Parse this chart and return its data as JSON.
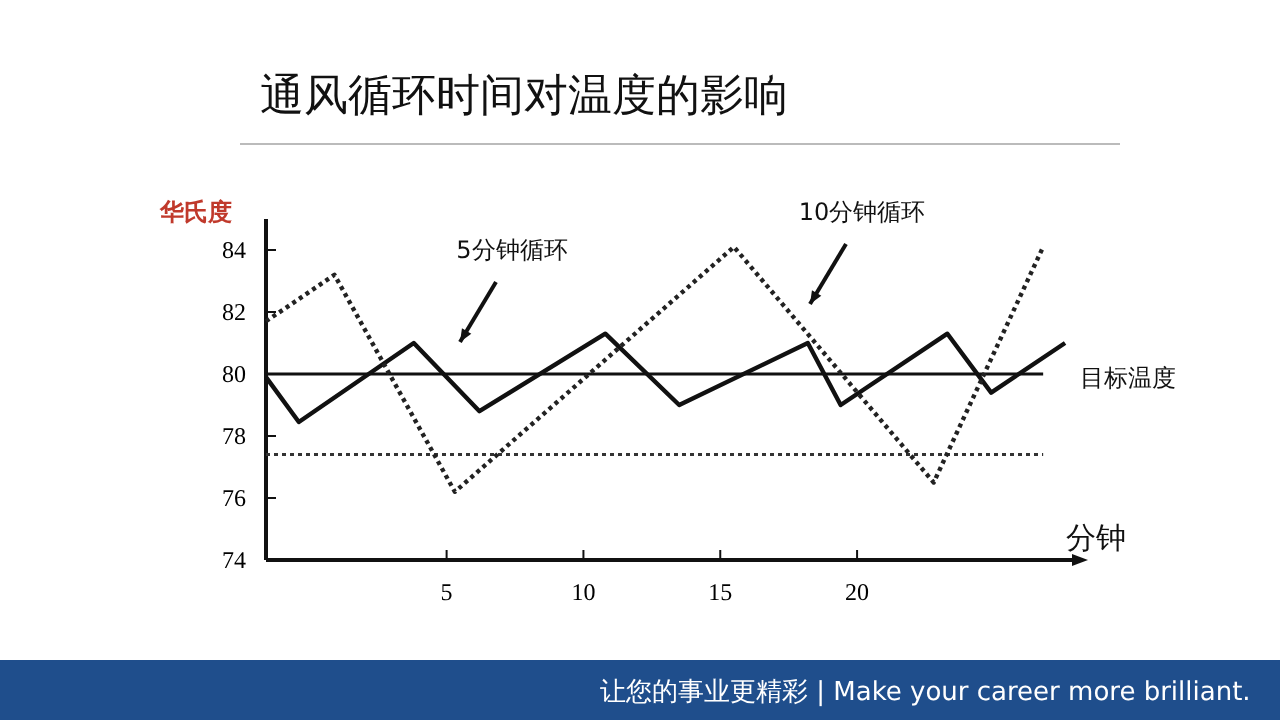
{
  "chart_data": {
    "type": "line",
    "title": "通风循环时间对温度的影响",
    "xlabel": "分钟",
    "ylabel": "华氏度",
    "xlim": [
      -1.6,
      28
    ],
    "xticks": [
      5,
      10,
      15,
      20
    ],
    "ylim": [
      74,
      85
    ],
    "yticks": [
      74,
      76,
      78,
      80,
      82,
      84
    ],
    "grid": false,
    "legend": false,
    "marker": "none",
    "series": [
      {
        "color": "#111111",
        "line_style": "solid",
        "x": [
          -1.6,
          -0.4,
          3.8,
          6.2,
          10.8,
          13.5,
          18.2,
          19.4,
          23.3,
          24.9,
          27.6
        ],
        "values": [
          79.9,
          78.45,
          81.0,
          78.8,
          81.3,
          79.0,
          81.0,
          79.0,
          81.3,
          79.4,
          81.0
        ]
      },
      {
        "color": "#222222",
        "line_style": "dotted",
        "x": [
          -1.6,
          0.9,
          5.3,
          15.5,
          22.8,
          26.8
        ],
        "values": [
          81.7,
          83.2,
          76.2,
          84.1,
          76.5,
          84.1
        ]
      }
    ],
    "ref_lines": [
      {
        "axis": "y",
        "value": 80,
        "label": "目标温度",
        "color": "#111111",
        "line_style": "solid"
      },
      {
        "axis": "y",
        "value": 77.4,
        "color": "#333333",
        "line_style": "dotted"
      }
    ],
    "annotations": [
      "5分钟循环",
      "10分钟循环",
      "让您的事业更精彩 | Make your career more brilliant."
    ]
  }
}
